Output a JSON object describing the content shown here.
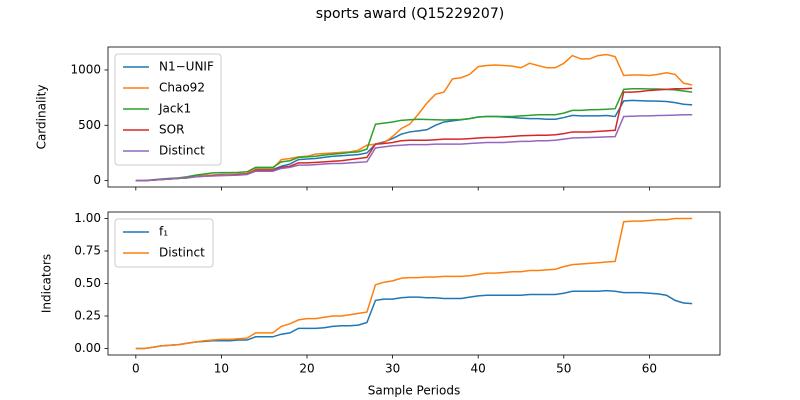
{
  "chart_data": [
    {
      "type": "line",
      "title": "sports award (Q15229207)",
      "ylabel": "Cardinality",
      "x": [
        0,
        1,
        2,
        3,
        4,
        5,
        6,
        7,
        8,
        9,
        10,
        11,
        12,
        13,
        14,
        15,
        16,
        17,
        18,
        19,
        20,
        21,
        22,
        23,
        24,
        25,
        26,
        27,
        28,
        29,
        30,
        31,
        32,
        33,
        34,
        35,
        36,
        37,
        38,
        39,
        40,
        41,
        42,
        43,
        44,
        45,
        46,
        47,
        48,
        49,
        50,
        51,
        52,
        53,
        54,
        55,
        56,
        57,
        58,
        59,
        60,
        61,
        62,
        63,
        64,
        65
      ],
      "xlim": [
        -3.25,
        68.25
      ],
      "ylim": [
        -57.5,
        1207.5
      ],
      "yticks": [
        0,
        500,
        1000
      ],
      "legend": "upper left",
      "series": [
        {
          "name": "N1−UNIF",
          "color": "#1f77b4",
          "values": [
            0,
            0,
            5,
            10,
            15,
            20,
            25,
            40,
            45,
            50,
            55,
            55,
            60,
            60,
            100,
            100,
            100,
            130,
            150,
            190,
            195,
            200,
            210,
            220,
            225,
            230,
            235,
            250,
            330,
            350,
            380,
            420,
            440,
            450,
            460,
            500,
            530,
            540,
            550,
            560,
            575,
            580,
            580,
            575,
            570,
            565,
            560,
            560,
            555,
            555,
            570,
            590,
            585,
            585,
            585,
            588,
            580,
            720,
            725,
            722,
            720,
            718,
            715,
            705,
            690,
            685
          ]
        },
        {
          "name": "Chao92",
          "color": "#ff7f0e",
          "values": [
            0,
            0,
            5,
            10,
            15,
            20,
            25,
            40,
            45,
            50,
            52,
            55,
            60,
            65,
            110,
            110,
            110,
            190,
            200,
            215,
            220,
            240,
            245,
            250,
            255,
            260,
            275,
            320,
            330,
            340,
            400,
            470,
            510,
            600,
            700,
            780,
            800,
            920,
            930,
            960,
            1030,
            1040,
            1045,
            1040,
            1035,
            1020,
            1060,
            1040,
            1020,
            1020,
            1060,
            1130,
            1100,
            1100,
            1130,
            1140,
            1120,
            950,
            955,
            955,
            950,
            960,
            975,
            960,
            880,
            865
          ]
        },
        {
          "name": "Jack1",
          "color": "#2ca02c",
          "values": [
            0,
            0,
            8,
            15,
            20,
            25,
            35,
            50,
            60,
            70,
            72,
            72,
            75,
            80,
            120,
            120,
            120,
            170,
            180,
            210,
            215,
            220,
            230,
            240,
            245,
            255,
            260,
            285,
            510,
            520,
            530,
            545,
            550,
            555,
            552,
            550,
            548,
            550,
            552,
            560,
            575,
            580,
            580,
            580,
            580,
            585,
            590,
            595,
            595,
            595,
            610,
            635,
            635,
            640,
            642,
            645,
            650,
            825,
            830,
            830,
            828,
            828,
            825,
            820,
            810,
            800
          ]
        },
        {
          "name": "SOR",
          "color": "#d62728",
          "values": [
            0,
            0,
            5,
            10,
            15,
            20,
            25,
            35,
            40,
            45,
            48,
            50,
            55,
            60,
            90,
            90,
            90,
            120,
            130,
            160,
            160,
            165,
            170,
            175,
            180,
            190,
            200,
            210,
            330,
            335,
            345,
            360,
            365,
            365,
            365,
            370,
            375,
            375,
            375,
            380,
            385,
            390,
            390,
            395,
            400,
            405,
            408,
            410,
            410,
            415,
            425,
            440,
            440,
            440,
            445,
            450,
            455,
            800,
            800,
            805,
            815,
            820,
            825,
            830,
            830,
            835
          ]
        },
        {
          "name": "Distinct",
          "color": "#9467bd",
          "values": [
            0,
            0,
            5,
            10,
            15,
            20,
            25,
            35,
            40,
            42,
            45,
            48,
            50,
            55,
            85,
            85,
            85,
            110,
            120,
            140,
            140,
            145,
            150,
            155,
            155,
            160,
            165,
            170,
            295,
            305,
            315,
            320,
            325,
            325,
            325,
            330,
            330,
            330,
            330,
            335,
            340,
            345,
            345,
            345,
            350,
            355,
            355,
            360,
            360,
            365,
            375,
            385,
            388,
            390,
            392,
            395,
            398,
            580,
            582,
            585,
            585,
            588,
            590,
            592,
            595,
            595
          ]
        }
      ]
    },
    {
      "type": "line",
      "ylabel": "Indicators",
      "xlabel": "Sample Periods",
      "x": [
        0,
        1,
        2,
        3,
        4,
        5,
        6,
        7,
        8,
        9,
        10,
        11,
        12,
        13,
        14,
        15,
        16,
        17,
        18,
        19,
        20,
        21,
        22,
        23,
        24,
        25,
        26,
        27,
        28,
        29,
        30,
        31,
        32,
        33,
        34,
        35,
        36,
        37,
        38,
        39,
        40,
        41,
        42,
        43,
        44,
        45,
        46,
        47,
        48,
        49,
        50,
        51,
        52,
        53,
        54,
        55,
        56,
        57,
        58,
        59,
        60,
        61,
        62,
        63,
        64,
        65
      ],
      "xlim": [
        -3.25,
        68.25
      ],
      "xticks": [
        0,
        10,
        20,
        30,
        40,
        50,
        60
      ],
      "ylim": [
        -0.05,
        1.05
      ],
      "yticks": [
        {
          "value": 0,
          "label": "0.00"
        },
        {
          "value": 0.25,
          "label": "0.25"
        },
        {
          "value": 0.5,
          "label": "0.50"
        },
        {
          "value": 0.75,
          "label": "0.75"
        },
        {
          "value": 1,
          "label": "1.00"
        }
      ],
      "legend": "upper left",
      "series": [
        {
          "name": "f₁",
          "color": "#1f77b4",
          "values": [
            0,
            0,
            0.01,
            0.02,
            0.025,
            0.03,
            0.04,
            0.05,
            0.055,
            0.06,
            0.06,
            0.06,
            0.065,
            0.065,
            0.09,
            0.09,
            0.09,
            0.11,
            0.12,
            0.155,
            0.155,
            0.155,
            0.16,
            0.17,
            0.175,
            0.175,
            0.18,
            0.2,
            0.37,
            0.38,
            0.38,
            0.39,
            0.395,
            0.395,
            0.39,
            0.39,
            0.385,
            0.385,
            0.385,
            0.395,
            0.405,
            0.41,
            0.41,
            0.41,
            0.41,
            0.41,
            0.415,
            0.415,
            0.415,
            0.415,
            0.425,
            0.44,
            0.44,
            0.44,
            0.44,
            0.445,
            0.44,
            0.43,
            0.43,
            0.43,
            0.425,
            0.42,
            0.41,
            0.37,
            0.35,
            0.345
          ]
        },
        {
          "name": "Distinct",
          "color": "#ff7f0e",
          "values": [
            0,
            0,
            0.01,
            0.02,
            0.025,
            0.03,
            0.04,
            0.05,
            0.06,
            0.065,
            0.07,
            0.07,
            0.075,
            0.08,
            0.12,
            0.12,
            0.12,
            0.17,
            0.19,
            0.22,
            0.23,
            0.23,
            0.24,
            0.25,
            0.25,
            0.26,
            0.27,
            0.28,
            0.49,
            0.51,
            0.52,
            0.54,
            0.545,
            0.545,
            0.55,
            0.55,
            0.555,
            0.555,
            0.555,
            0.56,
            0.57,
            0.58,
            0.58,
            0.585,
            0.59,
            0.59,
            0.6,
            0.6,
            0.605,
            0.61,
            0.63,
            0.645,
            0.65,
            0.655,
            0.66,
            0.665,
            0.67,
            0.975,
            0.98,
            0.98,
            0.985,
            0.99,
            0.99,
            1.0,
            1.0,
            1.0
          ]
        }
      ]
    }
  ]
}
